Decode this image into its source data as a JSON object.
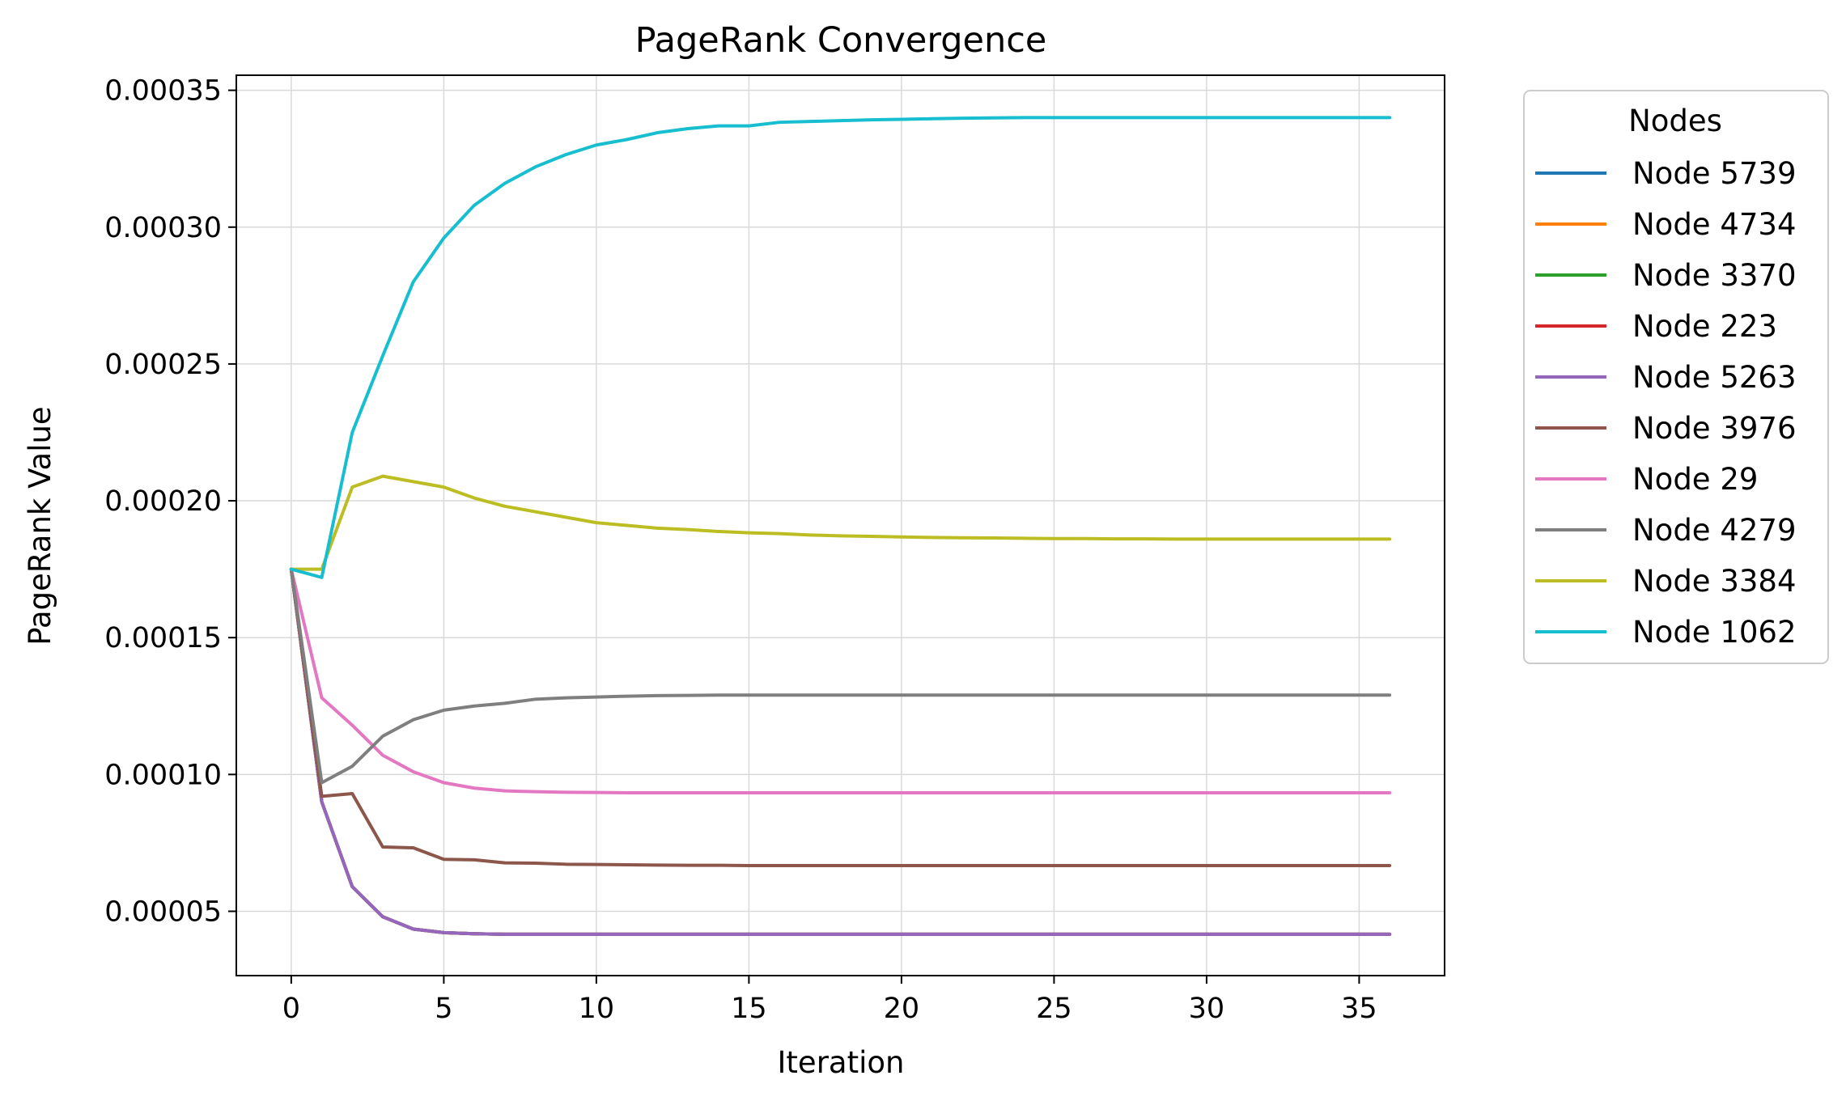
{
  "chart_data": {
    "type": "line",
    "title": "PageRank Convergence",
    "xlabel": "Iteration",
    "ylabel": "PageRank Value",
    "xlim": [
      -1.8,
      37.8
    ],
    "ylim": [
      2.65e-05,
      0.0003555
    ],
    "xticks": [
      0,
      5,
      10,
      15,
      20,
      25,
      30,
      35
    ],
    "xtick_labels": [
      "0",
      "5",
      "10",
      "15",
      "20",
      "25",
      "30",
      "35"
    ],
    "yticks": [
      5e-05,
      0.0001,
      0.00015,
      0.0002,
      0.00025,
      0.0003,
      0.00035
    ],
    "ytick_labels": [
      "0.00005",
      "0.00010",
      "0.00015",
      "0.00020",
      "0.00025",
      "0.00030",
      "0.00035"
    ],
    "grid": true,
    "legend": {
      "title": "Nodes",
      "placement": "outside right"
    },
    "x": [
      0,
      1,
      2,
      3,
      4,
      5,
      6,
      7,
      8,
      9,
      10,
      11,
      12,
      13,
      14,
      15,
      16,
      17,
      18,
      19,
      20,
      21,
      22,
      23,
      24,
      25,
      26,
      27,
      28,
      29,
      30,
      31,
      32,
      33,
      34,
      35,
      36
    ],
    "series": [
      {
        "name": "Node 5739",
        "color": "#1f77b4",
        "values": [
          0.000175,
          9e-05,
          5.9e-05,
          4.8e-05,
          4.35e-05,
          4.22e-05,
          4.18e-05,
          4.16e-05,
          4.16e-05,
          4.16e-05,
          4.16e-05,
          4.16e-05,
          4.16e-05,
          4.16e-05,
          4.16e-05,
          4.16e-05,
          4.16e-05,
          4.16e-05,
          4.16e-05,
          4.16e-05,
          4.16e-05,
          4.16e-05,
          4.16e-05,
          4.16e-05,
          4.16e-05,
          4.16e-05,
          4.16e-05,
          4.16e-05,
          4.16e-05,
          4.16e-05,
          4.16e-05,
          4.16e-05,
          4.16e-05,
          4.16e-05,
          4.16e-05,
          4.16e-05,
          4.16e-05
        ]
      },
      {
        "name": "Node 4734",
        "color": "#ff7f0e",
        "values": [
          0.000175,
          9e-05,
          5.9e-05,
          4.8e-05,
          4.35e-05,
          4.22e-05,
          4.18e-05,
          4.16e-05,
          4.16e-05,
          4.16e-05,
          4.16e-05,
          4.16e-05,
          4.16e-05,
          4.16e-05,
          4.16e-05,
          4.16e-05,
          4.16e-05,
          4.16e-05,
          4.16e-05,
          4.16e-05,
          4.16e-05,
          4.16e-05,
          4.16e-05,
          4.16e-05,
          4.16e-05,
          4.16e-05,
          4.16e-05,
          4.16e-05,
          4.16e-05,
          4.16e-05,
          4.16e-05,
          4.16e-05,
          4.16e-05,
          4.16e-05,
          4.16e-05,
          4.16e-05,
          4.16e-05
        ]
      },
      {
        "name": "Node 3370",
        "color": "#2ca02c",
        "values": [
          0.000175,
          9e-05,
          5.9e-05,
          4.8e-05,
          4.35e-05,
          4.22e-05,
          4.18e-05,
          4.16e-05,
          4.16e-05,
          4.16e-05,
          4.16e-05,
          4.16e-05,
          4.16e-05,
          4.16e-05,
          4.16e-05,
          4.16e-05,
          4.16e-05,
          4.16e-05,
          4.16e-05,
          4.16e-05,
          4.16e-05,
          4.16e-05,
          4.16e-05,
          4.16e-05,
          4.16e-05,
          4.16e-05,
          4.16e-05,
          4.16e-05,
          4.16e-05,
          4.16e-05,
          4.16e-05,
          4.16e-05,
          4.16e-05,
          4.16e-05,
          4.16e-05,
          4.16e-05,
          4.16e-05
        ]
      },
      {
        "name": "Node 223",
        "color": "#d62728",
        "values": [
          0.000175,
          9e-05,
          5.9e-05,
          4.8e-05,
          4.35e-05,
          4.22e-05,
          4.18e-05,
          4.16e-05,
          4.16e-05,
          4.16e-05,
          4.16e-05,
          4.16e-05,
          4.16e-05,
          4.16e-05,
          4.16e-05,
          4.16e-05,
          4.16e-05,
          4.16e-05,
          4.16e-05,
          4.16e-05,
          4.16e-05,
          4.16e-05,
          4.16e-05,
          4.16e-05,
          4.16e-05,
          4.16e-05,
          4.16e-05,
          4.16e-05,
          4.16e-05,
          4.16e-05,
          4.16e-05,
          4.16e-05,
          4.16e-05,
          4.16e-05,
          4.16e-05,
          4.16e-05,
          4.16e-05
        ]
      },
      {
        "name": "Node 5263",
        "color": "#9467bd",
        "values": [
          0.000175,
          9e-05,
          5.9e-05,
          4.8e-05,
          4.35e-05,
          4.22e-05,
          4.18e-05,
          4.16e-05,
          4.16e-05,
          4.16e-05,
          4.16e-05,
          4.16e-05,
          4.16e-05,
          4.16e-05,
          4.16e-05,
          4.16e-05,
          4.16e-05,
          4.16e-05,
          4.16e-05,
          4.16e-05,
          4.16e-05,
          4.16e-05,
          4.16e-05,
          4.16e-05,
          4.16e-05,
          4.16e-05,
          4.16e-05,
          4.16e-05,
          4.16e-05,
          4.16e-05,
          4.16e-05,
          4.16e-05,
          4.16e-05,
          4.16e-05,
          4.16e-05,
          4.16e-05,
          4.16e-05
        ]
      },
      {
        "name": "Node 3976",
        "color": "#8c564b",
        "values": [
          0.000175,
          9.2e-05,
          9.3e-05,
          7.35e-05,
          7.32e-05,
          6.9e-05,
          6.88e-05,
          6.77e-05,
          6.76e-05,
          6.72e-05,
          6.71e-05,
          6.7e-05,
          6.69e-05,
          6.68e-05,
          6.68e-05,
          6.67e-05,
          6.67e-05,
          6.67e-05,
          6.67e-05,
          6.67e-05,
          6.67e-05,
          6.67e-05,
          6.67e-05,
          6.67e-05,
          6.67e-05,
          6.67e-05,
          6.67e-05,
          6.67e-05,
          6.67e-05,
          6.67e-05,
          6.67e-05,
          6.67e-05,
          6.67e-05,
          6.67e-05,
          6.67e-05,
          6.67e-05,
          6.67e-05
        ]
      },
      {
        "name": "Node 29",
        "color": "#e377c2",
        "values": [
          0.000175,
          0.000128,
          0.000118,
          0.000107,
          0.000101,
          9.7e-05,
          9.5e-05,
          9.4e-05,
          9.37e-05,
          9.35e-05,
          9.34e-05,
          9.33e-05,
          9.33e-05,
          9.33e-05,
          9.33e-05,
          9.33e-05,
          9.33e-05,
          9.33e-05,
          9.33e-05,
          9.33e-05,
          9.33e-05,
          9.33e-05,
          9.33e-05,
          9.33e-05,
          9.33e-05,
          9.33e-05,
          9.33e-05,
          9.33e-05,
          9.33e-05,
          9.33e-05,
          9.33e-05,
          9.33e-05,
          9.33e-05,
          9.33e-05,
          9.33e-05,
          9.33e-05,
          9.33e-05
        ]
      },
      {
        "name": "Node 4279",
        "color": "#7f7f7f",
        "values": [
          0.000175,
          9.7e-05,
          0.000103,
          0.000114,
          0.00012,
          0.0001235,
          0.000125,
          0.000126,
          0.0001275,
          0.000128,
          0.0001283,
          0.0001286,
          0.0001288,
          0.0001289,
          0.000129,
          0.000129,
          0.000129,
          0.000129,
          0.000129,
          0.000129,
          0.000129,
          0.000129,
          0.000129,
          0.000129,
          0.000129,
          0.000129,
          0.000129,
          0.000129,
          0.000129,
          0.000129,
          0.000129,
          0.000129,
          0.000129,
          0.000129,
          0.000129,
          0.000129,
          0.000129
        ]
      },
      {
        "name": "Node 3384",
        "color": "#bcbd22",
        "values": [
          0.000175,
          0.000175,
          0.000205,
          0.000209,
          0.000207,
          0.000205,
          0.000201,
          0.000198,
          0.000196,
          0.000194,
          0.000192,
          0.000191,
          0.00019,
          0.0001895,
          0.0001888,
          0.0001883,
          0.000188,
          0.0001875,
          0.0001872,
          0.000187,
          0.0001868,
          0.0001866,
          0.0001865,
          0.0001864,
          0.0001863,
          0.0001862,
          0.0001862,
          0.0001861,
          0.0001861,
          0.000186,
          0.000186,
          0.000186,
          0.000186,
          0.000186,
          0.000186,
          0.000186,
          0.000186
        ]
      },
      {
        "name": "Node 1062",
        "color": "#17becf",
        "values": [
          0.000175,
          0.000172,
          0.000225,
          0.000253,
          0.00028,
          0.000296,
          0.000308,
          0.000316,
          0.000322,
          0.0003265,
          0.00033,
          0.000332,
          0.0003345,
          0.000336,
          0.000337,
          0.000337,
          0.0003383,
          0.0003386,
          0.0003389,
          0.0003392,
          0.0003394,
          0.0003396,
          0.0003398,
          0.0003399,
          0.00034,
          0.00034,
          0.00034,
          0.00034,
          0.00034,
          0.00034,
          0.00034,
          0.00034,
          0.00034,
          0.00034,
          0.00034,
          0.00034,
          0.00034
        ]
      }
    ]
  }
}
